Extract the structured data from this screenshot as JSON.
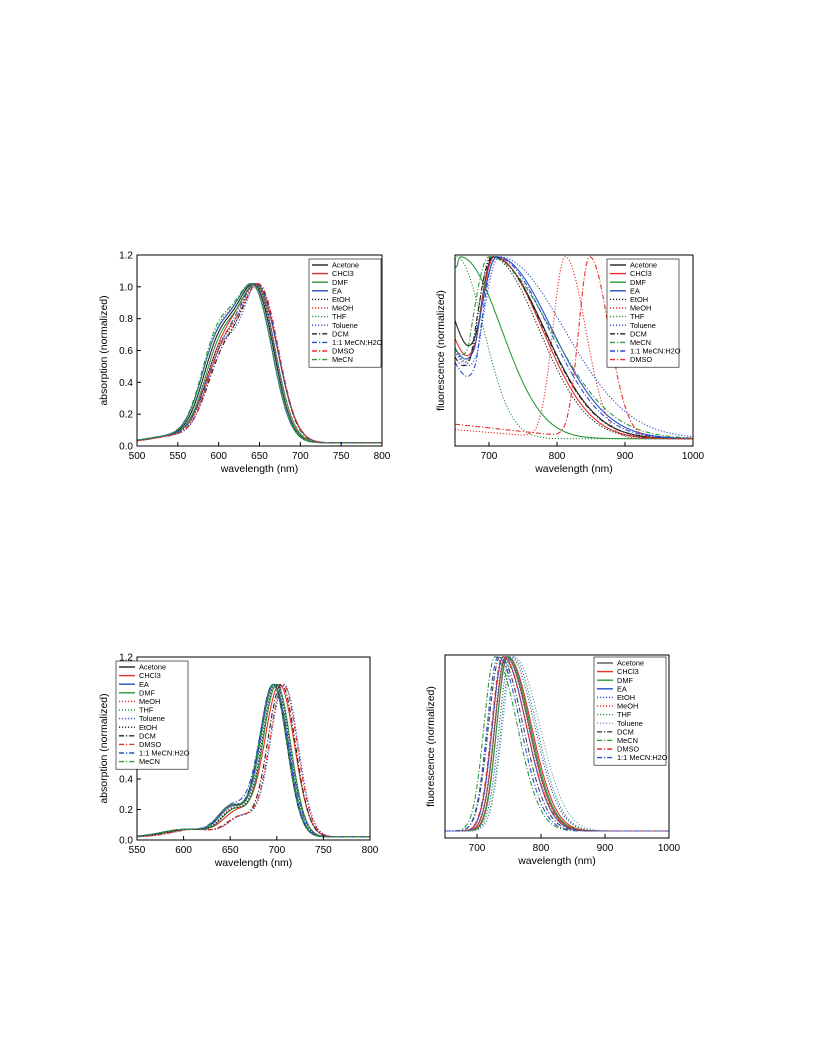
{
  "chart_data": [
    {
      "type": "line",
      "xlabel": "wavelength (nm)",
      "ylabel": "absorption (normalized)",
      "xlim": [
        500,
        800
      ],
      "ylim": [
        0,
        1.2
      ],
      "xticks": [
        500,
        550,
        600,
        650,
        700,
        750,
        800
      ],
      "yticks": [
        0.0,
        0.2,
        0.4,
        0.6,
        0.8,
        1.0,
        1.2
      ],
      "legend": "top-right",
      "series": [
        {
          "name": "Acetone",
          "color": "#222222",
          "dash": "solid",
          "main": 646,
          "shoulder": 0.86,
          "width": 22
        },
        {
          "name": "CHCl3",
          "color": "#e8302a",
          "dash": "solid",
          "main": 650,
          "shoulder": 0.8,
          "width": 23
        },
        {
          "name": "DMF",
          "color": "#2a9a3a",
          "dash": "solid",
          "main": 648,
          "shoulder": 0.84,
          "width": 22
        },
        {
          "name": "EA",
          "color": "#2a4fc8",
          "dash": "solid",
          "main": 644,
          "shoulder": 0.88,
          "width": 22
        },
        {
          "name": "EtOH",
          "color": "#222222",
          "dash": "dot",
          "main": 647,
          "shoulder": 0.76,
          "width": 21
        },
        {
          "name": "MeOH",
          "color": "#e8302a",
          "dash": "dot",
          "main": 648,
          "shoulder": 0.73,
          "width": 21
        },
        {
          "name": "THF",
          "color": "#2a9a3a",
          "dash": "dot",
          "main": 645,
          "shoulder": 0.92,
          "width": 22
        },
        {
          "name": "Toluene",
          "color": "#2a4fc8",
          "dash": "dot",
          "main": 649,
          "shoulder": 0.78,
          "width": 20
        },
        {
          "name": "DCM",
          "color": "#222222",
          "dash": "dashdot",
          "main": 651,
          "shoulder": 0.72,
          "width": 22
        },
        {
          "name": "1:1 MeCN:H2O",
          "color": "#2a4fc8",
          "dash": "dashdot",
          "main": 650,
          "shoulder": 0.74,
          "width": 23
        },
        {
          "name": "DMSO",
          "color": "#e8302a",
          "dash": "dashdot",
          "main": 652,
          "shoulder": 0.8,
          "width": 22
        },
        {
          "name": "MeCN",
          "color": "#2a9a3a",
          "dash": "dashdot",
          "main": 644,
          "shoulder": 0.94,
          "width": 22
        }
      ]
    },
    {
      "type": "line",
      "xlabel": "wavelength (nm)",
      "ylabel": "fluorescence (normalized)",
      "xlim": [
        650,
        1000
      ],
      "ylim": [
        0,
        1.05
      ],
      "xticks": [
        700,
        800,
        900,
        1000
      ],
      "legend": "top-right",
      "series": [
        {
          "name": "Acetone",
          "color": "#222222",
          "dash": "solid",
          "peak": 706,
          "w1": 22,
          "w2": 75,
          "start": 0.65
        },
        {
          "name": "CHCl3",
          "color": "#e8302a",
          "dash": "solid",
          "peak": 708,
          "w1": 24,
          "w2": 70,
          "start": 0.55
        },
        {
          "name": "DMF",
          "color": "#2a9a3a",
          "dash": "solid",
          "peak": 658,
          "w1": 15,
          "w2": 60,
          "start": 0.95
        },
        {
          "name": "EA",
          "color": "#2a4fc8",
          "dash": "solid",
          "peak": 712,
          "w1": 28,
          "w2": 80,
          "start": 0.5
        },
        {
          "name": "EtOH",
          "color": "#222222",
          "dash": "dot",
          "peak": 703,
          "w1": 22,
          "w2": 70,
          "start": 0.5
        },
        {
          "name": "MeOH",
          "color": "#e8302a",
          "dash": "dot",
          "peak": 812,
          "w1": 18,
          "w2": 30,
          "start": 0.05
        },
        {
          "name": "THF",
          "color": "#2a9a3a",
          "dash": "dot",
          "peak": 652,
          "w1": 8,
          "w2": 40,
          "start": 0.9
        },
        {
          "name": "Toluene",
          "color": "#2a4fc8",
          "dash": "dot",
          "peak": 715,
          "w1": 26,
          "w2": 95,
          "start": 0.48
        },
        {
          "name": "DCM",
          "color": "#222222",
          "dash": "dashdot",
          "peak": 705,
          "w1": 25,
          "w2": 75,
          "start": 0.45
        },
        {
          "name": "MeCN",
          "color": "#2a9a3a",
          "dash": "dashdot",
          "peak": 700,
          "w1": 26,
          "w2": 90,
          "start": 0.5
        },
        {
          "name": "1:1 MeCN:H2O",
          "color": "#2a4fc8",
          "dash": "dashdot",
          "peak": 710,
          "w1": 22,
          "w2": 78,
          "start": 0.42
        },
        {
          "name": "DMSO",
          "color": "#e8302a",
          "dash": "dashdot",
          "peak": 848,
          "w1": 16,
          "w2": 28,
          "start": 0.08
        }
      ]
    },
    {
      "type": "line",
      "xlabel": "wavelength (nm)",
      "ylabel": "absorption (normalized)",
      "xlim": [
        550,
        800
      ],
      "ylim": [
        0,
        1.2
      ],
      "xticks": [
        550,
        600,
        650,
        700,
        750,
        800
      ],
      "yticks": [
        0.0,
        0.2,
        0.4,
        0.6,
        0.8,
        1.0,
        1.2
      ],
      "legend": "top-left",
      "series": [
        {
          "name": "Acetone",
          "color": "#222222",
          "dash": "solid",
          "main": 696,
          "shoulder": 0.27,
          "width": 15
        },
        {
          "name": "CHCl3",
          "color": "#e8302a",
          "dash": "solid",
          "main": 703,
          "shoulder": 0.22,
          "width": 16
        },
        {
          "name": "EA",
          "color": "#2a4fc8",
          "dash": "solid",
          "main": 697,
          "shoulder": 0.26,
          "width": 15
        },
        {
          "name": "DMF",
          "color": "#2a9a3a",
          "dash": "solid",
          "main": 700,
          "shoulder": 0.24,
          "width": 15
        },
        {
          "name": "MeOH",
          "color": "#e8302a",
          "dash": "dot",
          "main": 699,
          "shoulder": 0.25,
          "width": 15
        },
        {
          "name": "THF",
          "color": "#2a9a3a",
          "dash": "dot",
          "main": 698,
          "shoulder": 0.26,
          "width": 15
        },
        {
          "name": "Toluene",
          "color": "#2a4fc8",
          "dash": "dot",
          "main": 708,
          "shoulder": 0.18,
          "width": 15
        },
        {
          "name": "EtOH",
          "color": "#222222",
          "dash": "dot",
          "main": 699,
          "shoulder": 0.24,
          "width": 15
        },
        {
          "name": "DCM",
          "color": "#222222",
          "dash": "dashdot",
          "main": 705,
          "shoulder": 0.17,
          "width": 15
        },
        {
          "name": "DMSO",
          "color": "#e8302a",
          "dash": "dashdot",
          "main": 707,
          "shoulder": 0.18,
          "width": 15
        },
        {
          "name": "1:1 MeCN:H2O",
          "color": "#2a4fc8",
          "dash": "dashdot",
          "main": 697,
          "shoulder": 0.27,
          "width": 16
        },
        {
          "name": "MeCN",
          "color": "#2a9a3a",
          "dash": "dashdot",
          "main": 696,
          "shoulder": 0.27,
          "width": 15
        }
      ]
    },
    {
      "type": "line",
      "xlabel": "wavelength (nm)",
      "ylabel": "fluorescence (normalized)",
      "xlim": [
        650,
        1000
      ],
      "ylim": [
        0,
        1.05
      ],
      "xticks": [
        700,
        800,
        900,
        1000
      ],
      "legend": "top-right",
      "series": [
        {
          "name": "Acetone",
          "color": "#555555",
          "dash": "solid",
          "peak": 745,
          "w1": 17,
          "w2": 36
        },
        {
          "name": "CHCl3",
          "color": "#e8302a",
          "dash": "solid",
          "peak": 748,
          "w1": 17,
          "w2": 37
        },
        {
          "name": "DMF",
          "color": "#2a9a3a",
          "dash": "solid",
          "peak": 747,
          "w1": 16,
          "w2": 36
        },
        {
          "name": "EA",
          "color": "#2a4fc8",
          "dash": "solid",
          "peak": 741,
          "w1": 17,
          "w2": 36
        },
        {
          "name": "EtOH",
          "color": "#2a4fc8",
          "dash": "dot",
          "peak": 752,
          "w1": 17,
          "w2": 38
        },
        {
          "name": "MeOH",
          "color": "#e8302a",
          "dash": "dot",
          "peak": 744,
          "w1": 17,
          "w2": 36
        },
        {
          "name": "THF",
          "color": "#2a9a3a",
          "dash": "dot",
          "peak": 755,
          "w1": 17,
          "w2": 38
        },
        {
          "name": "Toluene",
          "color": "#7a9ad0",
          "dash": "dot",
          "peak": 758,
          "w1": 18,
          "w2": 40
        },
        {
          "name": "DCM",
          "color": "#444444",
          "dash": "dashdot",
          "peak": 736,
          "w1": 18,
          "w2": 36
        },
        {
          "name": "MeCN",
          "color": "#2a9a3a",
          "dash": "dashdot",
          "peak": 728,
          "w1": 17,
          "w2": 35
        },
        {
          "name": "DMSO",
          "color": "#e8302a",
          "dash": "dashdot",
          "peak": 740,
          "w1": 17,
          "w2": 37
        },
        {
          "name": "1:1 MeCN:H2O",
          "color": "#2a4fc8",
          "dash": "dashdot",
          "peak": 733,
          "w1": 17,
          "w2": 35
        }
      ]
    }
  ]
}
